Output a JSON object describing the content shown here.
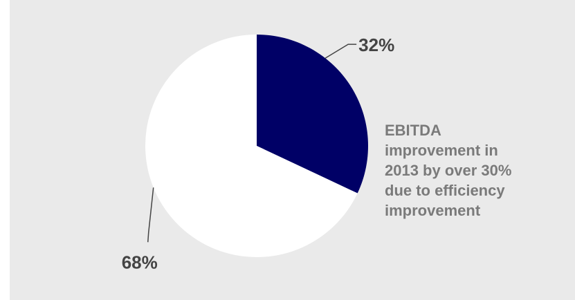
{
  "chart_data": {
    "type": "pie",
    "slices": [
      {
        "value": 32,
        "label": "32%",
        "color": "#000066"
      },
      {
        "value": 68,
        "label": "68%",
        "color": "#ffffff"
      }
    ],
    "start_angle_deg": 0,
    "direction": "clockwise",
    "annotation": "EBITDA\nimprovement in\n2013 by over 30%\ndue to efficiency\nimprovement"
  },
  "colors": {
    "background": "#eaeaea",
    "leader_line": "#444444",
    "label_text": "#444444",
    "annotation_text": "#7a7a7a"
  }
}
